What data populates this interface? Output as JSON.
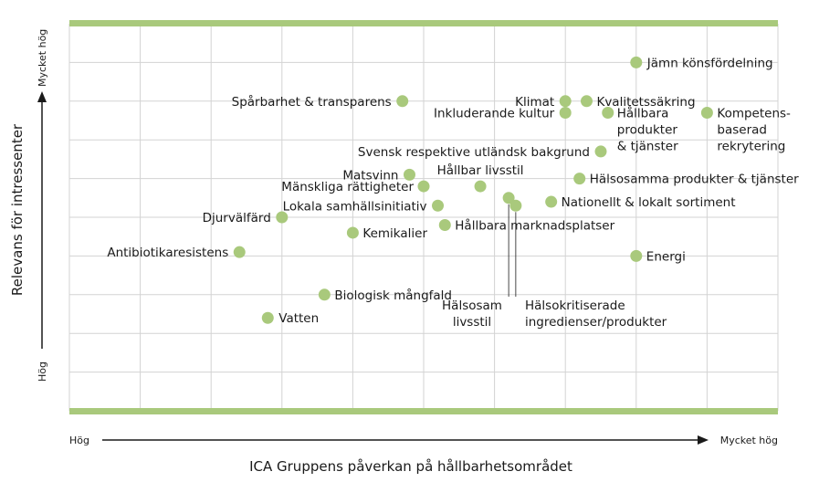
{
  "chart_data": {
    "type": "scatter",
    "xlabel": "ICA Gruppens påverkan på hållbarhetsområdet",
    "ylabel": "Relevans för intressenter",
    "x_low_label": "Hög",
    "x_high_label": "Mycket hög",
    "y_low_label": "Hög",
    "y_high_label": "Mycket hög",
    "xlim": [
      0,
      10
    ],
    "ylim": [
      0,
      10
    ],
    "grid": true,
    "accent_color": "#a9c97c",
    "point_color": "#a9c97c",
    "points": [
      {
        "x": 8.0,
        "y": 9.0,
        "label": "Jämn könsfördelning"
      },
      {
        "x": 7.0,
        "y": 8.0,
        "label": "Klimat"
      },
      {
        "x": 7.3,
        "y": 8.0,
        "label": "Kvalitetssäkring"
      },
      {
        "x": 7.0,
        "y": 7.7,
        "label": "Inkluderande kultur"
      },
      {
        "x": 7.6,
        "y": 7.7,
        "label": "Hållbara\nprodukter\n& tjänster"
      },
      {
        "x": 9.0,
        "y": 7.7,
        "label": "Kompetens-\nbaserad\nrekrytering"
      },
      {
        "x": 4.7,
        "y": 8.0,
        "label": "Spårbarhet & transparens"
      },
      {
        "x": 7.5,
        "y": 6.7,
        "label": "Svensk respektive utländsk bakgrund"
      },
      {
        "x": 4.8,
        "y": 6.1,
        "label": "Matsvinn"
      },
      {
        "x": 7.2,
        "y": 6.0,
        "label": "Hälsosamma produkter & tjänster"
      },
      {
        "x": 5.0,
        "y": 5.8,
        "label": "Mänskliga rättigheter"
      },
      {
        "x": 5.8,
        "y": 5.8,
        "label": "Hållbar livsstil"
      },
      {
        "x": 6.8,
        "y": 5.4,
        "label": "Nationellt & lokalt sortiment"
      },
      {
        "x": 5.2,
        "y": 5.3,
        "label": "Lokala samhällsinitiativ"
      },
      {
        "x": 6.2,
        "y": 5.5,
        "label": "Hälsosam\nlivsstil"
      },
      {
        "x": 6.3,
        "y": 5.3,
        "label": "Hälsokritiserade\ningredienser/produkter"
      },
      {
        "x": 3.0,
        "y": 5.0,
        "label": "Djurvälfärd"
      },
      {
        "x": 5.3,
        "y": 4.8,
        "label": "Hållbara marknadsplatser"
      },
      {
        "x": 4.0,
        "y": 4.6,
        "label": "Kemikalier"
      },
      {
        "x": 2.4,
        "y": 4.1,
        "label": "Antibiotikaresistens"
      },
      {
        "x": 8.0,
        "y": 4.0,
        "label": "Energi"
      },
      {
        "x": 3.6,
        "y": 3.0,
        "label": "Biologisk mångfald"
      },
      {
        "x": 2.8,
        "y": 2.4,
        "label": "Vatten"
      }
    ]
  }
}
